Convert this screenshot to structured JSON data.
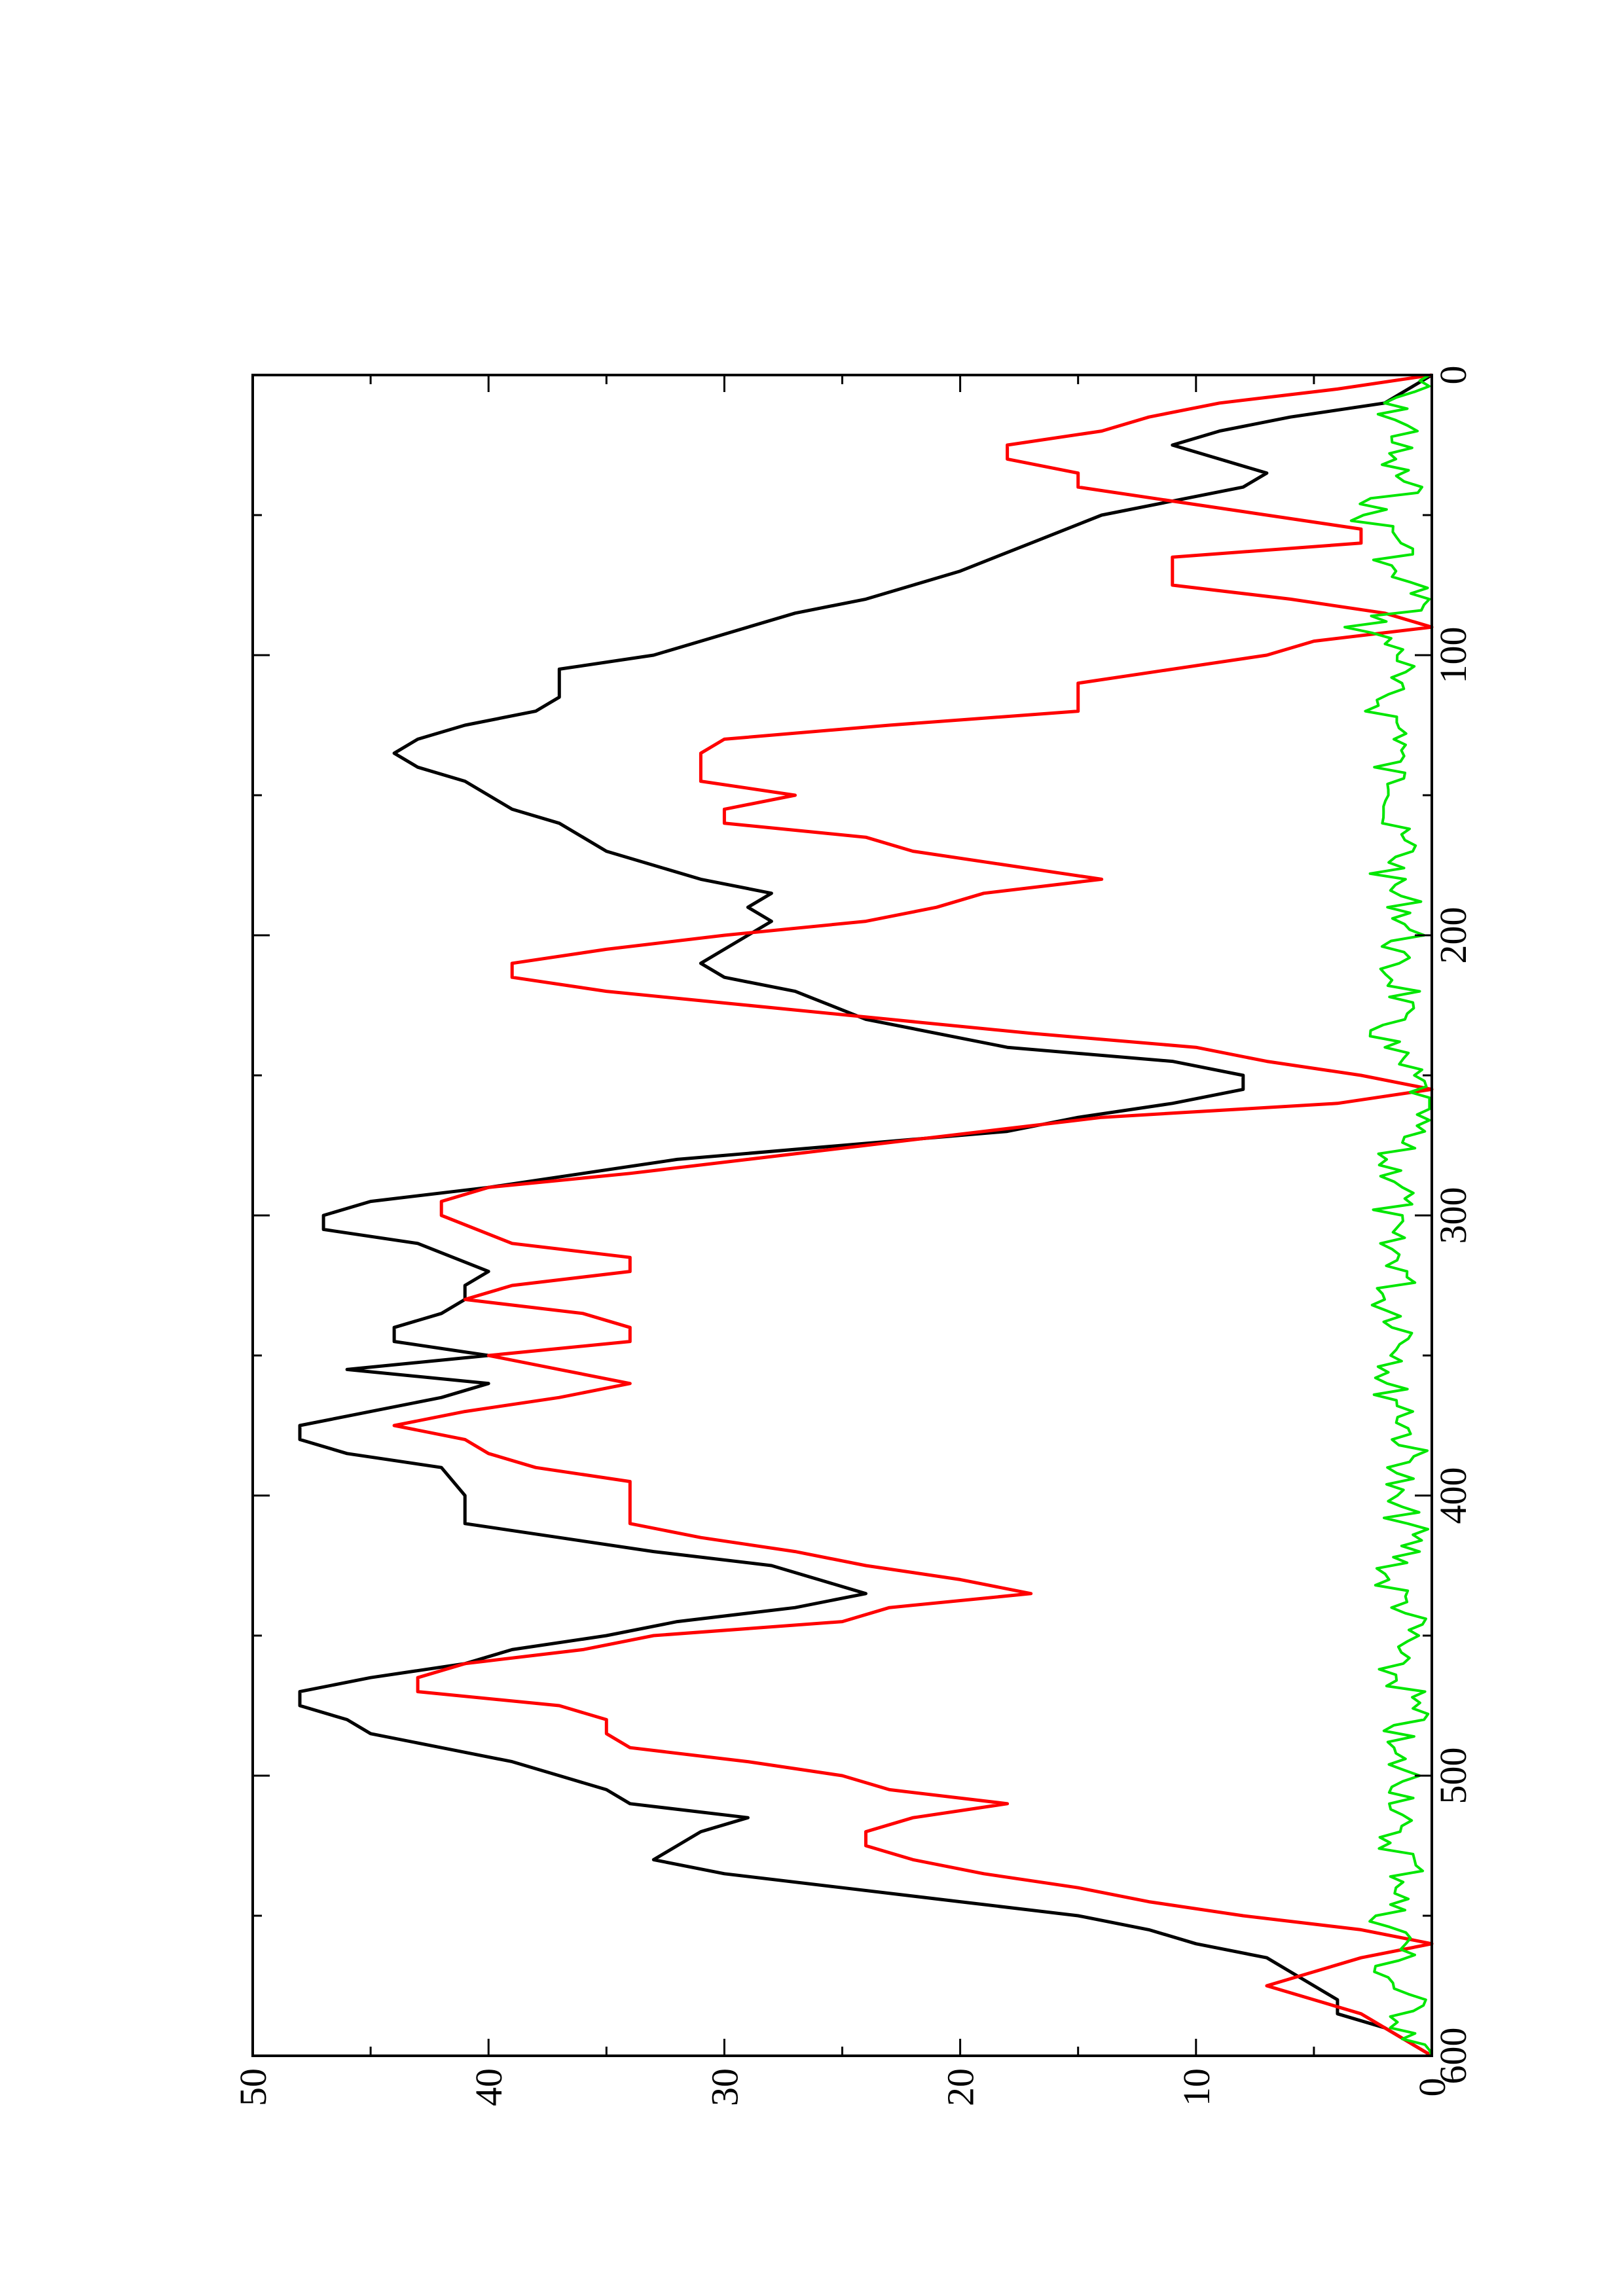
{
  "chart_data": {
    "type": "line",
    "orientation": "rotated-90-clockwise",
    "title": "",
    "xlabel": "",
    "ylabel": "",
    "xlim": [
      0,
      600
    ],
    "ylim": [
      0,
      50
    ],
    "x_major_ticks": [
      0,
      100,
      200,
      300,
      400,
      500,
      600
    ],
    "x_tick_labels": [
      "0",
      "100",
      "200",
      "300",
      "400",
      "500",
      "600"
    ],
    "y_major_ticks": [
      0,
      10,
      20,
      30,
      40,
      50
    ],
    "y_tick_labels": [
      "0",
      "10",
      "20",
      "30",
      "40",
      "50"
    ],
    "grid": false,
    "legend": "none",
    "series": [
      {
        "color": "#000000",
        "style": "smooth",
        "points": [
          [
            0,
            0
          ],
          [
            5,
            1
          ],
          [
            10,
            2
          ],
          [
            15,
            6
          ],
          [
            20,
            9
          ],
          [
            25,
            11
          ],
          [
            30,
            9
          ],
          [
            35,
            7
          ],
          [
            40,
            8
          ],
          [
            45,
            11
          ],
          [
            50,
            14
          ],
          [
            60,
            17
          ],
          [
            70,
            20
          ],
          [
            75,
            22
          ],
          [
            80,
            24
          ],
          [
            85,
            27
          ],
          [
            95,
            31
          ],
          [
            100,
            33
          ],
          [
            105,
            37
          ],
          [
            110,
            37
          ],
          [
            115,
            37
          ],
          [
            120,
            38
          ],
          [
            125,
            41
          ],
          [
            130,
            43
          ],
          [
            135,
            44
          ],
          [
            140,
            43
          ],
          [
            145,
            41
          ],
          [
            150,
            40
          ],
          [
            155,
            39
          ],
          [
            160,
            37
          ],
          [
            165,
            36
          ],
          [
            170,
            35
          ],
          [
            175,
            33
          ],
          [
            180,
            31
          ],
          [
            185,
            28
          ],
          [
            190,
            29
          ],
          [
            195,
            28
          ],
          [
            200,
            29
          ],
          [
            205,
            30
          ],
          [
            210,
            31
          ],
          [
            215,
            30
          ],
          [
            220,
            27
          ],
          [
            230,
            24
          ],
          [
            240,
            18
          ],
          [
            245,
            11
          ],
          [
            250,
            8
          ],
          [
            255,
            8
          ],
          [
            260,
            11
          ],
          [
            265,
            15
          ],
          [
            270,
            18
          ],
          [
            280,
            32
          ],
          [
            290,
            40
          ],
          [
            295,
            45
          ],
          [
            300,
            47
          ],
          [
            305,
            47
          ],
          [
            310,
            43
          ],
          [
            320,
            40
          ],
          [
            325,
            41
          ],
          [
            330,
            41
          ],
          [
            335,
            42
          ],
          [
            340,
            44
          ],
          [
            345,
            44
          ],
          [
            350,
            40
          ],
          [
            355,
            46
          ],
          [
            360,
            40
          ],
          [
            365,
            42
          ],
          [
            370,
            45
          ],
          [
            375,
            48
          ],
          [
            380,
            48
          ],
          [
            385,
            46
          ],
          [
            390,
            42
          ],
          [
            400,
            41
          ],
          [
            410,
            41
          ],
          [
            415,
            37
          ],
          [
            420,
            33
          ],
          [
            425,
            28
          ],
          [
            430,
            26
          ],
          [
            435,
            24
          ],
          [
            440,
            27
          ],
          [
            445,
            32
          ],
          [
            450,
            35
          ],
          [
            455,
            39
          ],
          [
            460,
            41
          ],
          [
            465,
            45
          ],
          [
            470,
            48
          ],
          [
            475,
            48
          ],
          [
            480,
            46
          ],
          [
            485,
            45
          ],
          [
            490,
            42
          ],
          [
            495,
            39
          ],
          [
            500,
            37
          ],
          [
            505,
            35
          ],
          [
            510,
            34
          ],
          [
            515,
            29
          ],
          [
            520,
            31
          ],
          [
            525,
            32
          ],
          [
            530,
            33
          ],
          [
            535,
            30
          ],
          [
            540,
            25
          ],
          [
            545,
            20
          ],
          [
            550,
            15
          ],
          [
            555,
            12
          ],
          [
            560,
            10
          ],
          [
            565,
            7
          ],
          [
            570,
            6
          ],
          [
            575,
            5
          ],
          [
            580,
            4
          ],
          [
            585,
            4
          ],
          [
            590,
            2
          ],
          [
            595,
            1
          ],
          [
            600,
            0
          ]
        ]
      },
      {
        "color": "#ff0000",
        "style": "linear",
        "points": [
          [
            0,
            0
          ],
          [
            5,
            4
          ],
          [
            10,
            9
          ],
          [
            15,
            12
          ],
          [
            20,
            14
          ],
          [
            25,
            18
          ],
          [
            30,
            18
          ],
          [
            35,
            15
          ],
          [
            40,
            15
          ],
          [
            45,
            11
          ],
          [
            50,
            7
          ],
          [
            55,
            3
          ],
          [
            60,
            3
          ],
          [
            65,
            11
          ],
          [
            70,
            11
          ],
          [
            75,
            11
          ],
          [
            80,
            6
          ],
          [
            85,
            2
          ],
          [
            90,
            0
          ],
          [
            95,
            5
          ],
          [
            100,
            7
          ],
          [
            110,
            15
          ],
          [
            115,
            15
          ],
          [
            120,
            15
          ],
          [
            125,
            23
          ],
          [
            130,
            30
          ],
          [
            135,
            31
          ],
          [
            140,
            31
          ],
          [
            145,
            31
          ],
          [
            150,
            27
          ],
          [
            155,
            30
          ],
          [
            160,
            30
          ],
          [
            165,
            24
          ],
          [
            170,
            22
          ],
          [
            175,
            18
          ],
          [
            180,
            14
          ],
          [
            185,
            19
          ],
          [
            190,
            21
          ],
          [
            195,
            24
          ],
          [
            200,
            30
          ],
          [
            205,
            35
          ],
          [
            210,
            39
          ],
          [
            215,
            39
          ],
          [
            220,
            35
          ],
          [
            225,
            29
          ],
          [
            230,
            23
          ],
          [
            235,
            17
          ],
          [
            240,
            10
          ],
          [
            245,
            7
          ],
          [
            250,
            3
          ],
          [
            255,
            0
          ],
          [
            260,
            4
          ],
          [
            265,
            14
          ],
          [
            270,
            19
          ],
          [
            275,
            24
          ],
          [
            280,
            29
          ],
          [
            285,
            34
          ],
          [
            290,
            40
          ],
          [
            295,
            42
          ],
          [
            300,
            42
          ],
          [
            310,
            39
          ],
          [
            315,
            34
          ],
          [
            320,
            34
          ],
          [
            325,
            39
          ],
          [
            330,
            41
          ],
          [
            335,
            36
          ],
          [
            340,
            34
          ],
          [
            345,
            34
          ],
          [
            350,
            40
          ],
          [
            355,
            37
          ],
          [
            360,
            34
          ],
          [
            365,
            37
          ],
          [
            370,
            41
          ],
          [
            375,
            44
          ],
          [
            380,
            41
          ],
          [
            385,
            40
          ],
          [
            390,
            38
          ],
          [
            395,
            34
          ],
          [
            400,
            34
          ],
          [
            405,
            34
          ],
          [
            410,
            34
          ],
          [
            415,
            31
          ],
          [
            420,
            27
          ],
          [
            425,
            24
          ],
          [
            430,
            20
          ],
          [
            435,
            17
          ],
          [
            440,
            23
          ],
          [
            445,
            25
          ],
          [
            450,
            33
          ],
          [
            455,
            36
          ],
          [
            460,
            41
          ],
          [
            465,
            43
          ],
          [
            470,
            43
          ],
          [
            475,
            37
          ],
          [
            480,
            35
          ],
          [
            485,
            35
          ],
          [
            490,
            34
          ],
          [
            495,
            29
          ],
          [
            500,
            25
          ],
          [
            505,
            23
          ],
          [
            510,
            18
          ],
          [
            515,
            22
          ],
          [
            520,
            24
          ],
          [
            525,
            24
          ],
          [
            530,
            22
          ],
          [
            535,
            19
          ],
          [
            540,
            15
          ],
          [
            545,
            12
          ],
          [
            550,
            8
          ],
          [
            555,
            3
          ],
          [
            560,
            0
          ],
          [
            565,
            3
          ],
          [
            570,
            5
          ],
          [
            575,
            7
          ],
          [
            580,
            5
          ],
          [
            585,
            3
          ],
          [
            590,
            2
          ],
          [
            595,
            1
          ],
          [
            600,
            0
          ]
        ]
      },
      {
        "color": "#00e600",
        "style": "noisy",
        "points": [
          [
            0,
            0
          ],
          [
            10,
            2
          ],
          [
            20,
            1
          ],
          [
            30,
            2
          ],
          [
            40,
            1
          ],
          [
            50,
            3
          ],
          [
            60,
            1
          ],
          [
            70,
            2
          ],
          [
            80,
            0
          ],
          [
            90,
            3
          ],
          [
            100,
            1
          ],
          [
            110,
            2
          ],
          [
            120,
            2
          ],
          [
            130,
            1
          ],
          [
            140,
            2
          ],
          [
            150,
            1
          ],
          [
            160,
            2
          ],
          [
            170,
            1
          ],
          [
            180,
            2
          ],
          [
            190,
            1
          ],
          [
            200,
            1
          ],
          [
            210,
            2
          ],
          [
            220,
            1
          ],
          [
            230,
            2
          ],
          [
            240,
            2
          ],
          [
            250,
            1
          ],
          [
            260,
            0
          ],
          [
            270,
            1
          ],
          [
            280,
            2
          ],
          [
            290,
            1
          ],
          [
            300,
            2
          ],
          [
            310,
            2
          ],
          [
            320,
            1
          ],
          [
            330,
            2
          ],
          [
            340,
            1
          ],
          [
            350,
            1
          ],
          [
            360,
            2
          ],
          [
            370,
            1
          ],
          [
            380,
            1
          ],
          [
            390,
            1
          ],
          [
            400,
            2
          ],
          [
            410,
            1
          ],
          [
            420,
            1
          ],
          [
            430,
            2
          ],
          [
            440,
            1
          ],
          [
            450,
            1
          ],
          [
            460,
            2
          ],
          [
            470,
            1
          ],
          [
            480,
            1
          ],
          [
            490,
            2
          ],
          [
            500,
            1
          ],
          [
            510,
            1
          ],
          [
            520,
            2
          ],
          [
            530,
            1
          ],
          [
            540,
            1
          ],
          [
            550,
            2
          ],
          [
            560,
            1
          ],
          [
            570,
            2
          ],
          [
            580,
            1
          ],
          [
            590,
            1
          ],
          [
            600,
            0
          ]
        ]
      }
    ]
  }
}
